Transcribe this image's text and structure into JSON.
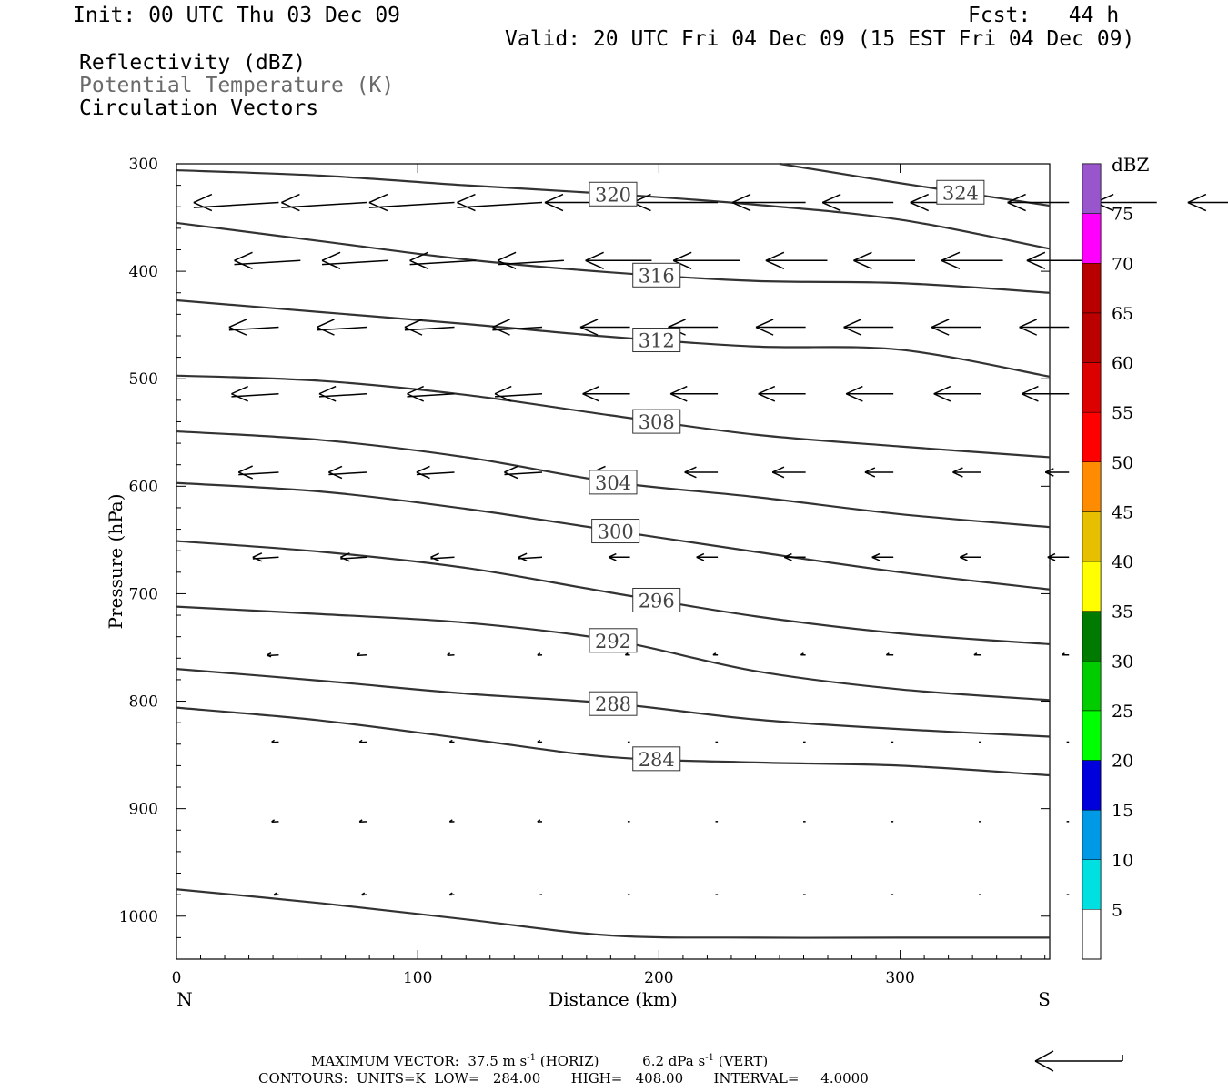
{
  "header": {
    "init": "Init: 00 UTC Thu 03 Dec 09",
    "fcst": "Fcst:   44 h",
    "valid": "Valid: 20 UTC Fri 04 Dec 09 (15 EST Fri 04 Dec 09)",
    "field1": "Reflectivity (dBZ)",
    "field2": "Potential Temperature (K)",
    "field3": "Circulation Vectors"
  },
  "footer": {
    "line1_prefix": "MAXIMUM VECTOR:  37.5 m s",
    "line1_sup1": "-1",
    "line1_mid": " (HORIZ)          6.2 dPa s",
    "line1_sup2": "-1",
    "line1_suffix": " (VERT)",
    "line2": "CONTOURS:  UNITS=K  LOW=   284.00       HIGH=   408.00       INTERVAL=     4.0000"
  },
  "colors": {
    "contour": "#333333",
    "vector": "#000000",
    "axis": "#000000"
  },
  "chart_data": {
    "type": "contour",
    "ylabel": "Pressure (hPa)",
    "xlabel": "Distance (km)",
    "x_end_labels": {
      "left": "N",
      "right": "S"
    },
    "xlim": [
      0,
      362
    ],
    "ylim": [
      1040,
      300
    ],
    "y_inverted": true,
    "xticks": [
      0,
      100,
      200,
      300
    ],
    "xtick_labels": [
      "0",
      "100",
      "200",
      "300"
    ],
    "yticks": [
      300,
      400,
      500,
      600,
      700,
      800,
      900,
      1000
    ],
    "ytick_labels": [
      "300",
      "400",
      "500",
      "600",
      "700",
      "800",
      "900",
      "1000"
    ],
    "contours": [
      {
        "level": "324",
        "points": [
          [
            250,
            300
          ],
          [
            300,
            318
          ],
          [
            362,
            339
          ]
        ],
        "label_x": 325
      },
      {
        "level": "320",
        "points": [
          [
            0,
            306
          ],
          [
            60,
            311
          ],
          [
            120,
            320
          ],
          [
            180,
            328
          ],
          [
            240,
            338
          ],
          [
            300,
            352
          ],
          [
            362,
            379
          ]
        ],
        "label_x": 181
      },
      {
        "level": "316",
        "points": [
          [
            0,
            355
          ],
          [
            60,
            372
          ],
          [
            120,
            389
          ],
          [
            180,
            401
          ],
          [
            240,
            409
          ],
          [
            300,
            411
          ],
          [
            362,
            420
          ]
        ],
        "label_x": 199
      },
      {
        "level": "312",
        "points": [
          [
            0,
            427
          ],
          [
            60,
            438
          ],
          [
            120,
            449
          ],
          [
            180,
            461
          ],
          [
            240,
            470
          ],
          [
            300,
            473
          ],
          [
            362,
            498
          ]
        ],
        "label_x": 199
      },
      {
        "level": "308",
        "points": [
          [
            0,
            497
          ],
          [
            60,
            502
          ],
          [
            120,
            515
          ],
          [
            180,
            534
          ],
          [
            240,
            552
          ],
          [
            300,
            563
          ],
          [
            362,
            573
          ]
        ],
        "label_x": 199
      },
      {
        "level": "304",
        "points": [
          [
            0,
            549
          ],
          [
            60,
            557
          ],
          [
            120,
            573
          ],
          [
            180,
            596
          ],
          [
            240,
            610
          ],
          [
            300,
            626
          ],
          [
            362,
            638
          ]
        ],
        "label_x": 181
      },
      {
        "level": "300",
        "points": [
          [
            0,
            597
          ],
          [
            60,
            605
          ],
          [
            120,
            621
          ],
          [
            180,
            641
          ],
          [
            240,
            661
          ],
          [
            300,
            680
          ],
          [
            362,
            696
          ]
        ],
        "label_x": 182
      },
      {
        "level": "296",
        "points": [
          [
            0,
            651
          ],
          [
            60,
            661
          ],
          [
            120,
            676
          ],
          [
            180,
            699
          ],
          [
            240,
            721
          ],
          [
            300,
            737
          ],
          [
            362,
            747
          ]
        ],
        "label_x": 199
      },
      {
        "level": "292",
        "points": [
          [
            0,
            712
          ],
          [
            60,
            719
          ],
          [
            120,
            727
          ],
          [
            180,
            743
          ],
          [
            240,
            772
          ],
          [
            300,
            789
          ],
          [
            362,
            799
          ]
        ],
        "label_x": 181
      },
      {
        "level": "288",
        "points": [
          [
            0,
            770
          ],
          [
            60,
            781
          ],
          [
            120,
            793
          ],
          [
            180,
            802
          ],
          [
            240,
            817
          ],
          [
            300,
            826
          ],
          [
            362,
            833
          ]
        ],
        "label_x": 181
      },
      {
        "level": "284",
        "points": [
          [
            0,
            806
          ],
          [
            60,
            818
          ],
          [
            120,
            835
          ],
          [
            180,
            852
          ],
          [
            240,
            857
          ],
          [
            300,
            860
          ],
          [
            362,
            869
          ]
        ],
        "label_x": 199
      },
      {
        "level": "",
        "points": [
          [
            0,
            975
          ],
          [
            60,
            988
          ],
          [
            120,
            1003
          ],
          [
            180,
            1018
          ],
          [
            240,
            1020
          ],
          [
            300,
            1020
          ],
          [
            362,
            1020
          ]
        ],
        "label_x": null
      }
    ],
    "vector_rows": [
      {
        "p": 336,
        "u": [
          -36,
          -36,
          -36,
          -36,
          -36,
          -36,
          -31,
          -30,
          -30,
          -26,
          -26,
          -24,
          -24,
          -26,
          -24,
          -24,
          -26,
          -24
        ],
        "x0": 6,
        "dx": 36.4,
        "step": 1
      },
      {
        "p": 390,
        "u": [
          -28,
          -28,
          -28,
          -28,
          -28,
          -28,
          -26,
          -26,
          -26,
          -27
        ],
        "x0": 15
      },
      {
        "p": 452,
        "u": [
          -21,
          -21,
          -21,
          -21,
          -21,
          -21,
          -21,
          -21,
          -21,
          -21
        ]
      },
      {
        "p": 514,
        "u": [
          -20,
          -20,
          -20,
          -20,
          -20,
          -20,
          -20,
          -20,
          -20,
          -20
        ]
      },
      {
        "p": 587,
        "u": [
          -17,
          -16,
          -16,
          -16,
          -16,
          -14,
          -14,
          -12,
          -12,
          -10
        ]
      },
      {
        "p": 666,
        "u": [
          -11,
          -11,
          -10,
          -10,
          -9,
          -9,
          -9,
          -9,
          -9,
          -9
        ]
      },
      {
        "p": 757,
        "u": [
          -5,
          -4,
          -3,
          -2,
          -2,
          -2,
          -2,
          -3,
          -3,
          -3
        ]
      },
      {
        "p": 838,
        "u": [
          -3,
          -3,
          -2,
          -2,
          -1,
          -1,
          -1,
          -1,
          -1,
          -1
        ]
      },
      {
        "p": 912,
        "u": [
          -3,
          -3,
          -2,
          -2,
          -1,
          -1,
          -1,
          -1,
          -1,
          -1
        ]
      },
      {
        "p": 980,
        "u": [
          -2,
          -2,
          -2,
          -1,
          -1,
          -1,
          -1,
          -1,
          -1,
          -1
        ]
      }
    ],
    "colorbar": {
      "label": "dBZ",
      "levels": [
        "5",
        "10",
        "15",
        "20",
        "25",
        "30",
        "35",
        "40",
        "45",
        "50",
        "55",
        "60",
        "65",
        "70",
        "75"
      ],
      "colors": [
        "#00e0e0",
        "#0099e6",
        "#0000dd",
        "#00ff00",
        "#00cc00",
        "#007a00",
        "#ffff00",
        "#e6bf00",
        "#ff8c00",
        "#ff0000",
        "#dd0000",
        "#bb0000",
        "#b80000",
        "#ff00ff",
        "#9955cc"
      ]
    },
    "grid": false
  }
}
